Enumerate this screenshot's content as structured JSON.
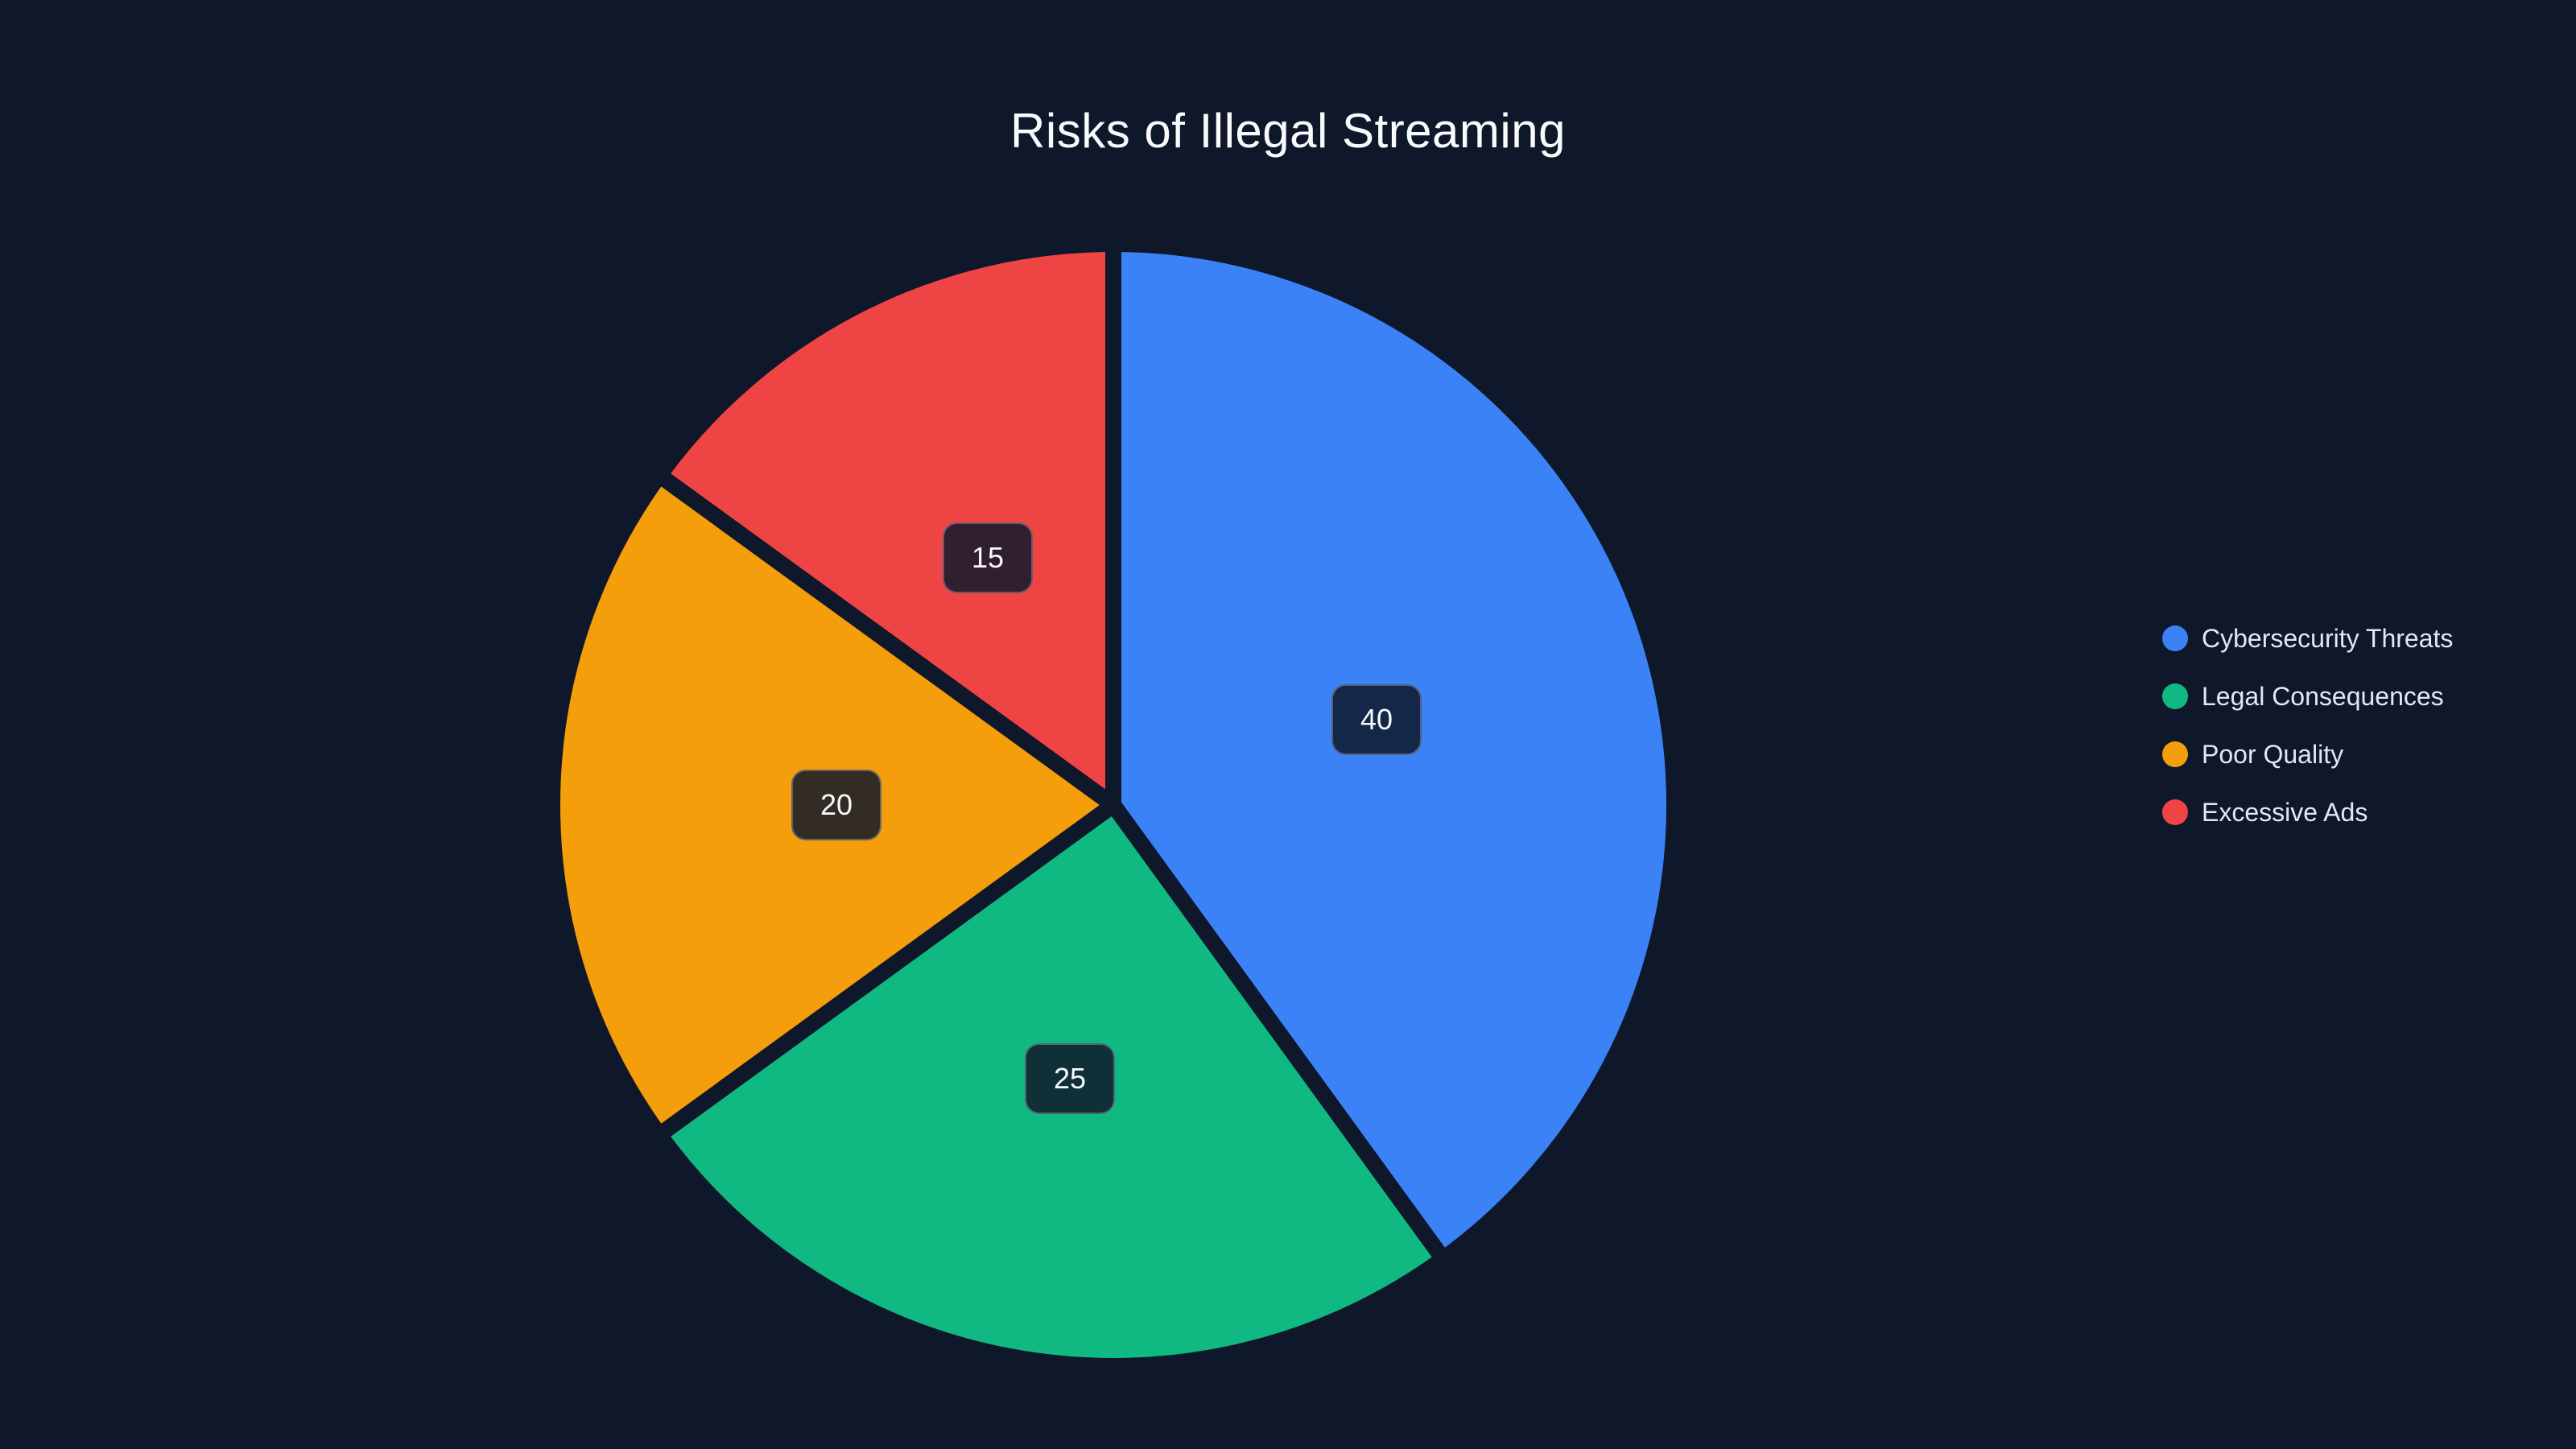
{
  "chart_data": {
    "type": "pie",
    "title": "Risks of Illegal Streaming",
    "categories": [
      "Cybersecurity Threats",
      "Legal Consequences",
      "Poor Quality",
      "Excessive Ads"
    ],
    "values": [
      40,
      25,
      20,
      15
    ],
    "data_labels": [
      "40",
      "25",
      "20",
      "15"
    ],
    "colors": [
      "#3b82f6",
      "#10b981",
      "#f59e0b",
      "#ef4444"
    ],
    "total": 100,
    "start_angle_deg": 0,
    "direction": "clockwise",
    "legend_position": "right",
    "background": "#0f172a",
    "title_color": "#f8fafc",
    "legend_text_color": "#e2e8f0",
    "label_box": {
      "background": "rgba(15, 23, 42, 0.85)",
      "border": "rgba(226, 232, 240, 0.3)",
      "text_color": "#f8fafc"
    }
  }
}
